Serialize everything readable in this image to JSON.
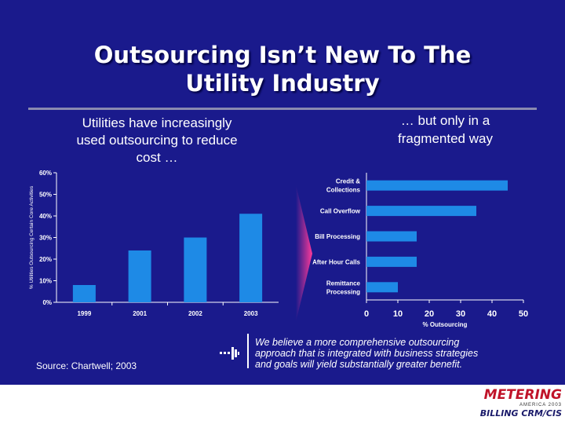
{
  "slide": {
    "title_line1": "Outsourcing Isn’t New To The",
    "title_line2": "Utility Industry",
    "left_subtitle_line1": "Utilities have increasingly",
    "left_subtitle_line2": "used outsourcing to reduce",
    "left_subtitle_line3": "cost …",
    "right_subtitle_line1": "… but only in a",
    "right_subtitle_line2": "fragmented way",
    "source": "Source: Chartwell; 2003",
    "note_line1": "We believe a more comprehensive outsourcing",
    "note_line2": "approach that is integrated with business strategies",
    "note_line3": "and goals will yield substantially greater benefit.",
    "logo_line1": "METERING",
    "logo_line2": "AMERICA 2003",
    "logo_line3": "BILLING CRM/CIS"
  },
  "colors": {
    "background": "#1a1a8c",
    "bar": "#1e8ae6",
    "arrow": "#ff3a9a"
  },
  "chart_data": [
    {
      "type": "bar",
      "orientation": "vertical",
      "title": "",
      "ylabel": "% Utilities Outsourcing Certain Core Activities",
      "xlabel": "",
      "categories": [
        "1999",
        "2001",
        "2002",
        "2003"
      ],
      "values": [
        8,
        24,
        30,
        41
      ],
      "ylim": [
        0,
        60
      ],
      "yticks": [
        "0%",
        "10%",
        "20%",
        "30%",
        "40%",
        "50%",
        "60%"
      ],
      "grid": false
    },
    {
      "type": "bar",
      "orientation": "horizontal",
      "title": "",
      "xlabel": "% Outsourcing",
      "ylabel": "",
      "categories": [
        "Credit & Collections",
        "Call Overflow",
        "Bill Processing",
        "After Hour Calls",
        "Remittance Processing"
      ],
      "category_lines": [
        [
          "Credit &",
          "Collections"
        ],
        [
          "Call Overflow"
        ],
        [
          "Bill Processing"
        ],
        [
          "After Hour Calls"
        ],
        [
          "Remittance",
          "Processing"
        ]
      ],
      "values": [
        45,
        35,
        16,
        16,
        10
      ],
      "xlim": [
        0,
        50
      ],
      "xticks": [
        "0",
        "10",
        "20",
        "30",
        "40",
        "50"
      ],
      "grid": false
    }
  ]
}
